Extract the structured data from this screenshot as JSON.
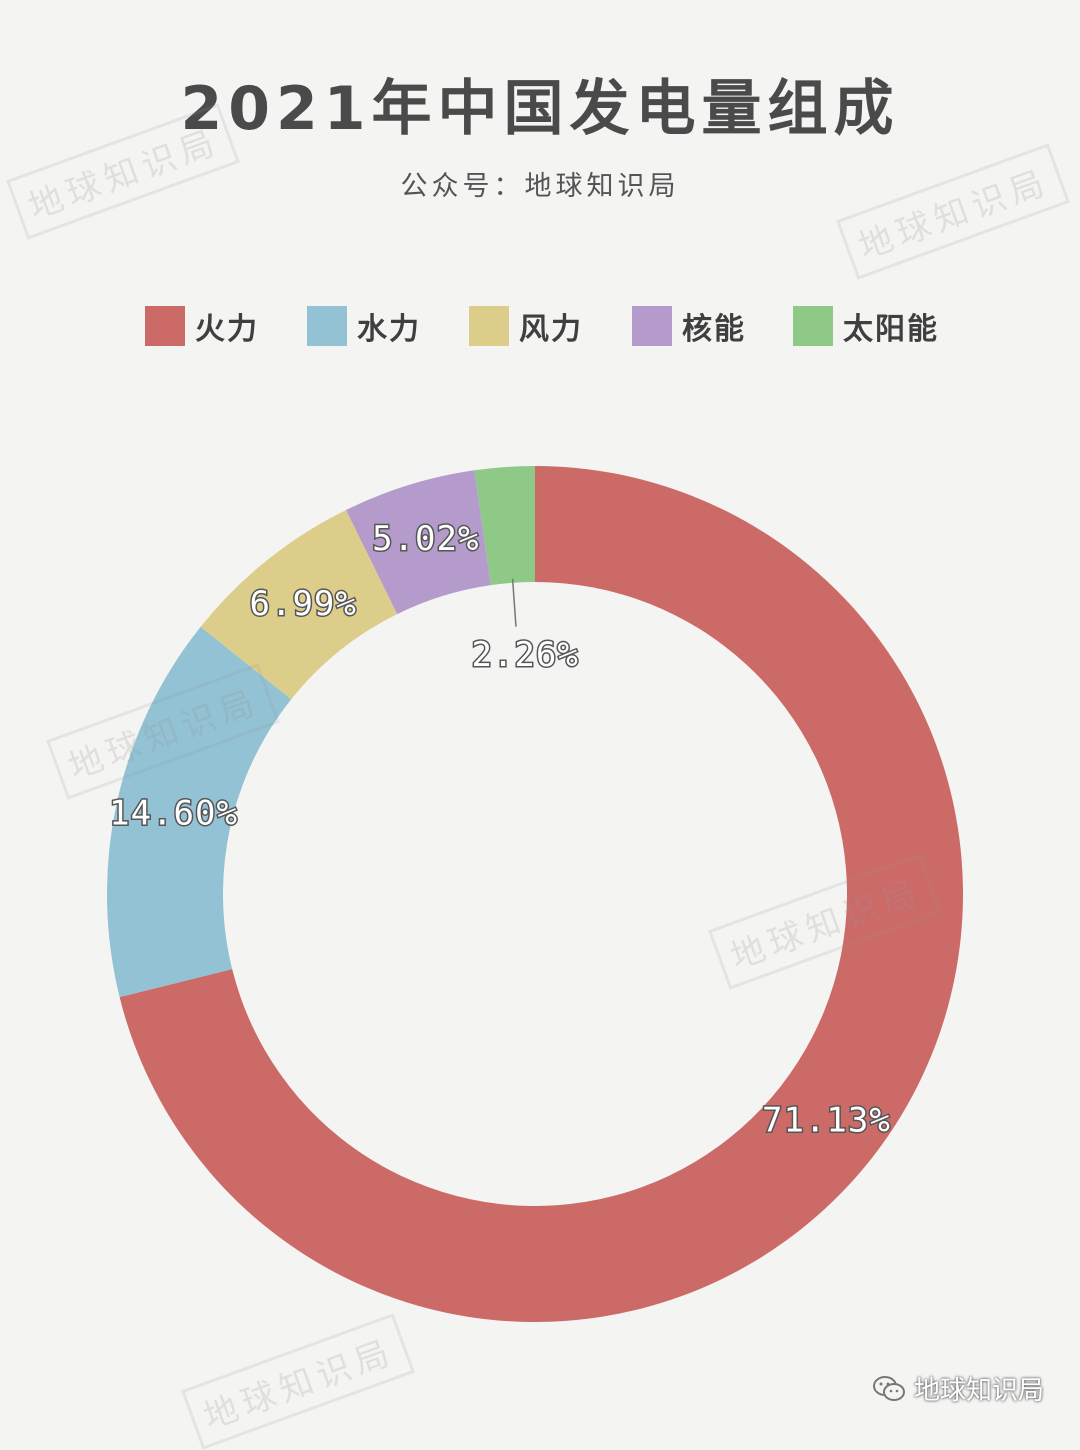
{
  "header": {
    "title": "2021年中国发电量组成",
    "subtitle": "公众号：地球知识局"
  },
  "watermark_text": "地球知识局",
  "footer": {
    "brand": "地球知识局",
    "icon": "wechat-icon"
  },
  "chart_data": {
    "type": "pie",
    "donut": true,
    "title": "2021年中国发电量组成",
    "subtitle": "公众号：地球知识局",
    "legend_position": "top",
    "categories": [
      "火力",
      "水力",
      "风力",
      "核能",
      "太阳能"
    ],
    "values": [
      71.13,
      14.6,
      6.99,
      5.02,
      2.26
    ],
    "labels": [
      "71.13%",
      "14.60%",
      "6.99%",
      "5.02%",
      "2.26%"
    ],
    "colors": [
      "#cc6a68",
      "#92c2d3",
      "#dccd8a",
      "#b49bcb",
      "#8fc987"
    ]
  }
}
